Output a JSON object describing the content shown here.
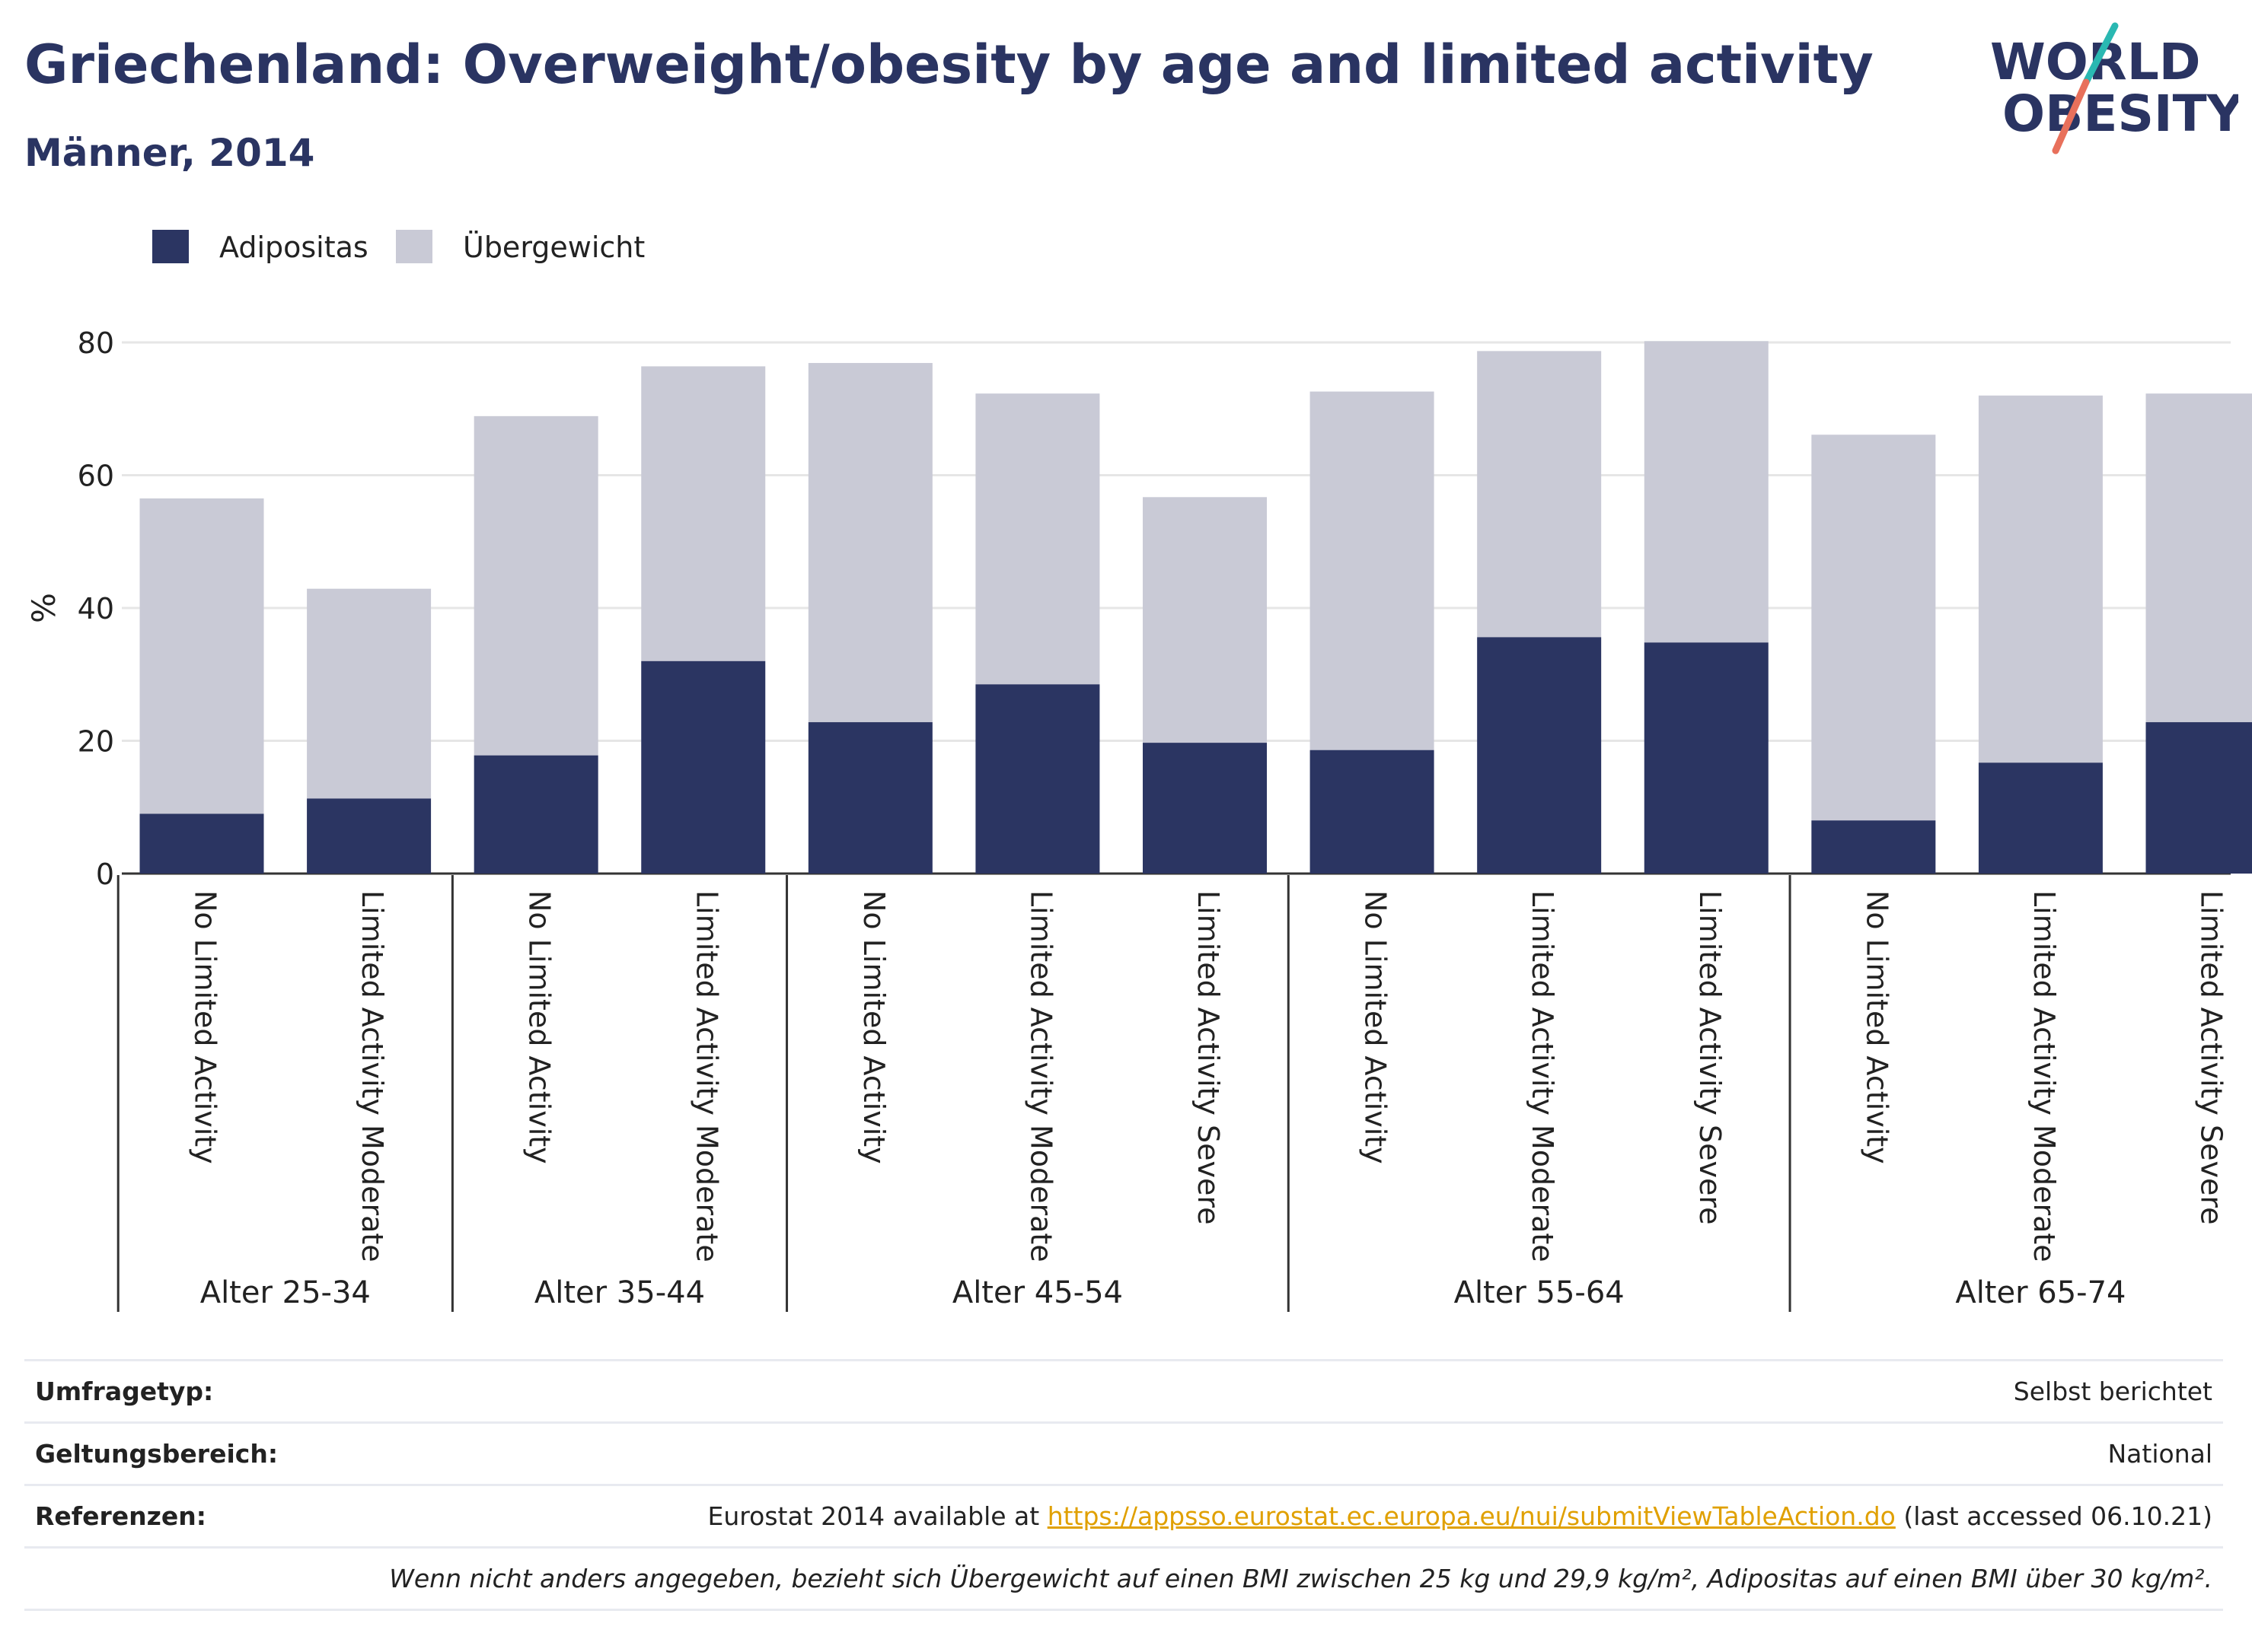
{
  "header": {
    "title": "Griechenland: Overweight/obesity by age and limited activity",
    "subtitle": "Männer, 2014"
  },
  "logo": {
    "line1": "WORLD",
    "line2": "OBESITY"
  },
  "legend": {
    "items": [
      {
        "label": "Adipositas",
        "color": "#2b3562"
      },
      {
        "label": "Übergewicht",
        "color": "#c9cad6"
      }
    ]
  },
  "chart_data": {
    "type": "bar",
    "stacked": true,
    "ylabel": "%",
    "ylim": [
      0,
      80
    ],
    "yticks": [
      0,
      20,
      40,
      60,
      80
    ],
    "grid": true,
    "legend_position": "top-left",
    "groups": [
      {
        "label": "Alter 25-34",
        "categories": [
          "No Limited Activity",
          "Limited Activity Moderate"
        ]
      },
      {
        "label": "Alter 35-44",
        "categories": [
          "No Limited Activity",
          "Limited Activity Moderate"
        ]
      },
      {
        "label": "Alter 45-54",
        "categories": [
          "No Limited Activity",
          "Limited Activity Moderate",
          "Limited Activity Severe"
        ]
      },
      {
        "label": "Alter 55-64",
        "categories": [
          "No Limited Activity",
          "Limited Activity Moderate",
          "Limited Activity Severe"
        ]
      },
      {
        "label": "Alter 65-74",
        "categories": [
          "No Limited Activity",
          "Limited Activity Moderate",
          "Limited Activity Severe"
        ]
      }
    ],
    "series": [
      {
        "name": "Adipositas",
        "color": "#2b3562",
        "values": [
          9.0,
          11.3,
          17.8,
          32.0,
          22.8,
          28.5,
          19.7,
          18.6,
          35.6,
          34.8,
          8.0,
          16.7,
          22.8
        ]
      },
      {
        "name": "Übergewicht",
        "color": "#c9cad6",
        "values": [
          47.5,
          31.6,
          51.1,
          44.4,
          54.1,
          43.8,
          37.0,
          54.0,
          43.1,
          45.4,
          58.1,
          55.3,
          49.5
        ]
      }
    ]
  },
  "info_table": {
    "rows": [
      {
        "key": "Umfragetyp:",
        "value": "Selbst berichtet"
      },
      {
        "key": "Geltungsbereich:",
        "value": "National"
      },
      {
        "key": "Referenzen:",
        "prefix": "Eurostat 2014 available at ",
        "link": "https://appsso.eurostat.ec.europa.eu/nui/submitViewTableAction.do",
        "suffix": " (last accessed 06.10.21)"
      }
    ],
    "note": "Wenn nicht anders angegeben, bezieht sich Übergewicht auf einen BMI zwischen 25 kg und 29,9 kg/m², Adipositas auf einen BMI über 30 kg/m²."
  }
}
